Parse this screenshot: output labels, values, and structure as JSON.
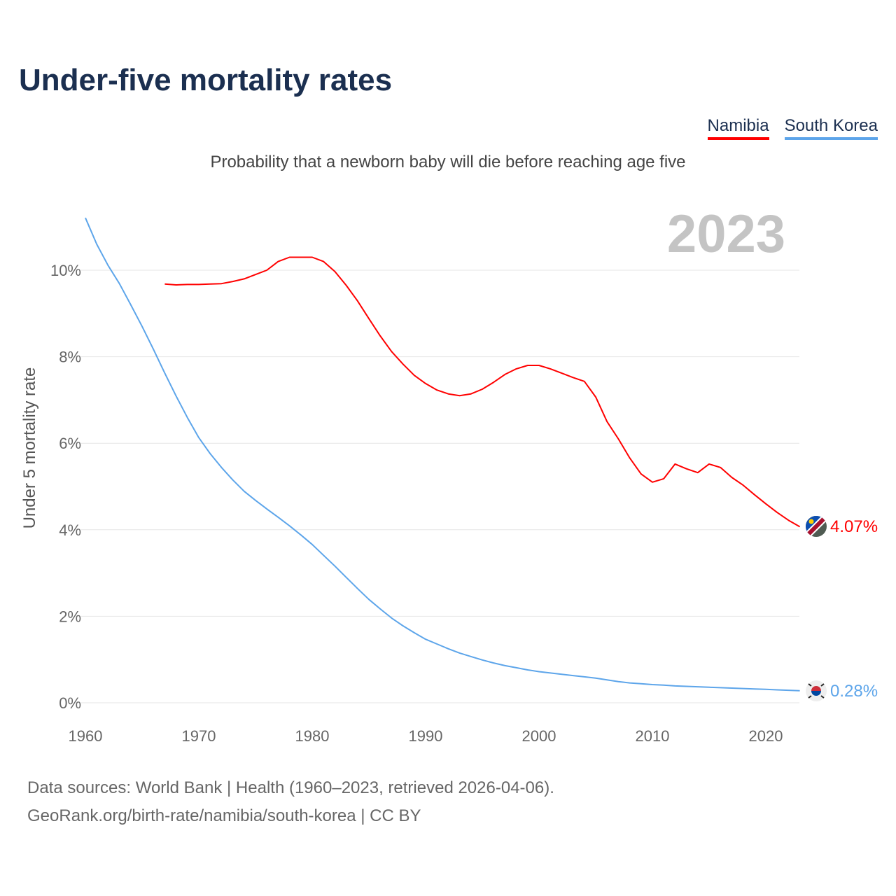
{
  "title": "Under-five mortality rates",
  "subtitle": "Probability that a newborn baby will die before reaching age five",
  "footer": {
    "line1": "Data sources: World Bank | Health (1960–2023, retrieved 2026-04-06).",
    "line2": "GeoRank.org/birth-rate/namibia/south-korea | CC BY"
  },
  "chart_data": {
    "type": "line",
    "title": "Under-five mortality rates",
    "subtitle": "Probability that a newborn baby will die before reaching age five",
    "xlabel": "",
    "ylabel": "Under 5 mortality rate",
    "year_label": "2023",
    "xlim": [
      1960,
      2023
    ],
    "ylim": [
      0,
      11.2
    ],
    "x_ticks": [
      1960,
      1970,
      1980,
      1990,
      2000,
      2010,
      2020
    ],
    "y_ticks": [
      0,
      2,
      4,
      6,
      8,
      10
    ],
    "y_tick_labels": [
      "0%",
      "2%",
      "4%",
      "6%",
      "8%",
      "10%"
    ],
    "grid": true,
    "legend_position": "top-right",
    "series": [
      {
        "name": "Namibia",
        "color": "#ff0000",
        "end_label": "4.07%",
        "flag": "namibia-flag",
        "x": [
          1967,
          1968,
          1969,
          1970,
          1971,
          1972,
          1973,
          1974,
          1975,
          1976,
          1977,
          1978,
          1979,
          1980,
          1981,
          1982,
          1983,
          1984,
          1985,
          1986,
          1987,
          1988,
          1989,
          1990,
          1991,
          1992,
          1993,
          1994,
          1995,
          1996,
          1997,
          1998,
          1999,
          2000,
          2001,
          2002,
          2003,
          2004,
          2005,
          2006,
          2007,
          2008,
          2009,
          2010,
          2011,
          2012,
          2013,
          2014,
          2015,
          2016,
          2017,
          2018,
          2019,
          2020,
          2021,
          2022,
          2023
        ],
        "values": [
          9.68,
          9.66,
          9.67,
          9.67,
          9.68,
          9.69,
          9.74,
          9.8,
          9.9,
          10.0,
          10.2,
          10.3,
          10.3,
          10.3,
          10.2,
          9.97,
          9.65,
          9.29,
          8.88,
          8.48,
          8.12,
          7.83,
          7.57,
          7.38,
          7.23,
          7.14,
          7.1,
          7.14,
          7.25,
          7.41,
          7.59,
          7.72,
          7.8,
          7.8,
          7.72,
          7.62,
          7.52,
          7.43,
          7.07,
          6.5,
          6.1,
          5.66,
          5.29,
          5.1,
          5.18,
          5.52,
          5.41,
          5.32,
          5.52,
          5.44,
          5.21,
          5.03,
          4.81,
          4.6,
          4.4,
          4.22,
          4.07
        ]
      },
      {
        "name": "South Korea",
        "color": "#5da5ea",
        "end_label": "0.28%",
        "flag": "south-korea-flag",
        "x": [
          1960,
          1961,
          1962,
          1963,
          1964,
          1965,
          1966,
          1967,
          1968,
          1969,
          1970,
          1971,
          1972,
          1973,
          1974,
          1975,
          1976,
          1977,
          1978,
          1979,
          1980,
          1981,
          1982,
          1983,
          1984,
          1985,
          1986,
          1987,
          1988,
          1989,
          1990,
          1991,
          1992,
          1993,
          1994,
          1995,
          1996,
          1997,
          1998,
          1999,
          2000,
          2001,
          2002,
          2003,
          2004,
          2005,
          2006,
          2007,
          2008,
          2009,
          2010,
          2011,
          2012,
          2013,
          2014,
          2015,
          2016,
          2017,
          2018,
          2019,
          2020,
          2021,
          2022,
          2023
        ],
        "values": [
          11.21,
          10.6,
          10.11,
          9.69,
          9.2,
          8.7,
          8.17,
          7.62,
          7.09,
          6.59,
          6.13,
          5.76,
          5.44,
          5.15,
          4.89,
          4.68,
          4.48,
          4.29,
          4.09,
          3.88,
          3.66,
          3.41,
          3.16,
          2.9,
          2.64,
          2.39,
          2.17,
          1.96,
          1.78,
          1.62,
          1.47,
          1.36,
          1.25,
          1.15,
          1.07,
          0.99,
          0.92,
          0.86,
          0.81,
          0.76,
          0.72,
          0.69,
          0.66,
          0.63,
          0.6,
          0.57,
          0.53,
          0.49,
          0.46,
          0.44,
          0.42,
          0.41,
          0.39,
          0.38,
          0.37,
          0.36,
          0.35,
          0.34,
          0.33,
          0.32,
          0.31,
          0.3,
          0.29,
          0.28
        ]
      }
    ]
  }
}
